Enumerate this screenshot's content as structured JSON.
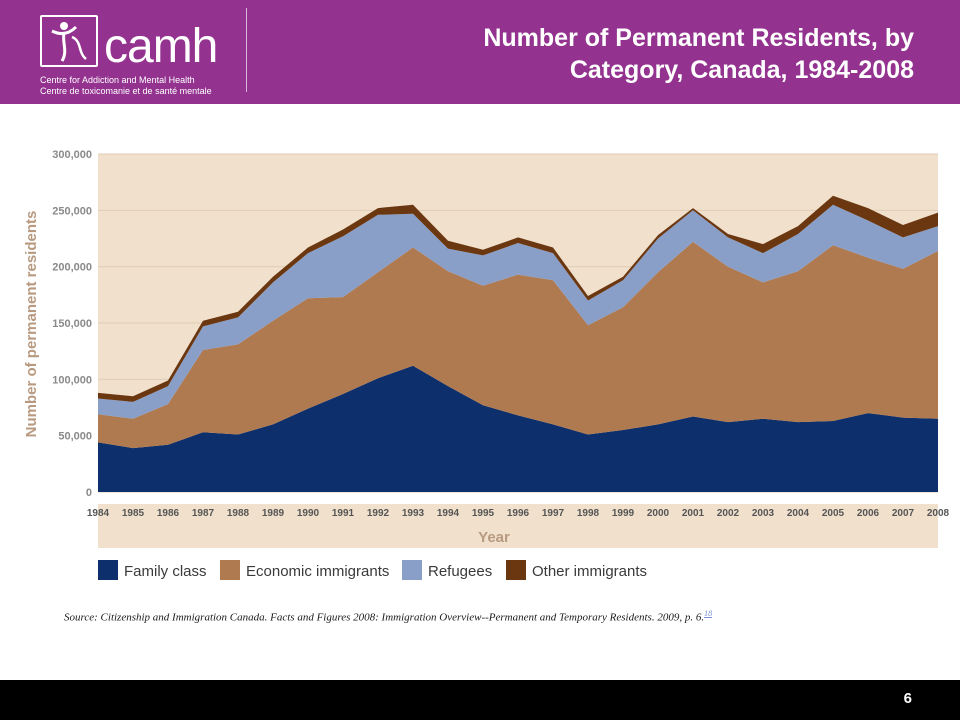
{
  "header": {
    "logo_text": "camh",
    "logo_sub_en": "Centre for Addiction and Mental Health",
    "logo_sub_fr": "Centre de toxicomanie et de santé mentale",
    "title_line1": "Number of Permanent Residents, by",
    "title_line2": "Category, Canada, 1984-2008",
    "bg_color": "#93338f"
  },
  "chart_data": {
    "type": "area",
    "stacked": true,
    "xlabel": "Year",
    "ylabel": "Number of permanent residents",
    "ylim": [
      0,
      300000
    ],
    "y_ticks": [
      "0",
      "50,000",
      "100,000",
      "150,000",
      "200,000",
      "250,000",
      "300,000"
    ],
    "y_tick_values": [
      0,
      50000,
      100000,
      150000,
      200000,
      250000,
      300000
    ],
    "x": [
      "1984",
      "1985",
      "1986",
      "1987",
      "1988",
      "1989",
      "1990",
      "1991",
      "1992",
      "1993",
      "1994",
      "1995",
      "1996",
      "1997",
      "1998",
      "1999",
      "2000",
      "2001",
      "2002",
      "2003",
      "2004",
      "2005",
      "2006",
      "2007",
      "2008"
    ],
    "legend_position": "bottom",
    "series": [
      {
        "name": "Family class",
        "color": "#0d2f6b",
        "values": [
          44000,
          39000,
          42000,
          53000,
          51000,
          60000,
          74000,
          87000,
          101000,
          112000,
          94000,
          77000,
          68000,
          60000,
          51000,
          55000,
          60000,
          67000,
          62000,
          65000,
          62000,
          63000,
          70000,
          66000,
          65000
        ]
      },
      {
        "name": "Economic immigrants",
        "color": "#b07a51",
        "values": [
          25000,
          26000,
          36000,
          73000,
          80000,
          92000,
          98000,
          86000,
          94000,
          105000,
          102000,
          106000,
          125000,
          128000,
          97000,
          109000,
          135000,
          155000,
          138000,
          121000,
          134000,
          156000,
          138000,
          132000,
          149000
        ]
      },
      {
        "name": "Refugees",
        "color": "#8a9fc8",
        "values": [
          14000,
          15000,
          16000,
          21000,
          24000,
          34000,
          40000,
          54000,
          51000,
          30000,
          20000,
          27000,
          28000,
          24000,
          22000,
          24000,
          30000,
          28000,
          26000,
          26000,
          33000,
          36000,
          33000,
          28000,
          22000
        ]
      },
      {
        "name": "Other immigrants",
        "color": "#6a3710",
        "values": [
          5000,
          5000,
          5000,
          5000,
          5000,
          5000,
          5000,
          6000,
          6000,
          8000,
          7000,
          5000,
          5000,
          5000,
          4000,
          3000,
          3000,
          2000,
          3000,
          8000,
          7000,
          8000,
          11000,
          11000,
          12000
        ]
      }
    ]
  },
  "source": {
    "text": "Source: Citizenship and Immigration Canada. Facts and Figures 2008: Immigration Overview--Permanent and Temporary Residents. 2009, p. 6.",
    "ref": "18"
  },
  "footer": {
    "page_number": "6"
  }
}
